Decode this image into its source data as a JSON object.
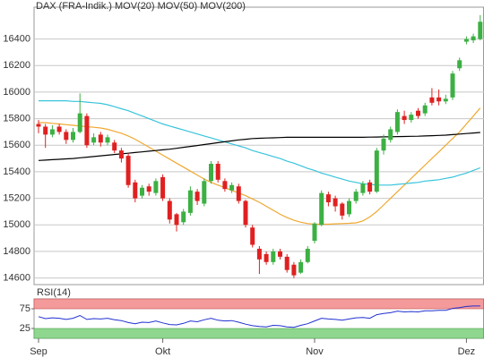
{
  "chart_data": [
    {
      "type": "candlestick",
      "name": "DAX (FRA-Indik.)",
      "name_color": "#e02020",
      "up_color": "#3cb043",
      "down_color": "#e02020",
      "categories": [
        "Sep",
        null,
        null,
        null,
        null,
        null,
        null,
        null,
        null,
        null,
        null,
        null,
        null,
        null,
        null,
        null,
        null,
        null,
        "Okt",
        null,
        null,
        null,
        null,
        null,
        null,
        null,
        null,
        null,
        null,
        null,
        null,
        null,
        null,
        null,
        null,
        null,
        null,
        null,
        null,
        null,
        "Nov",
        null,
        null,
        null,
        null,
        null,
        null,
        null,
        null,
        null,
        null,
        null,
        null,
        null,
        null,
        null,
        null,
        null,
        null,
        null,
        null,
        null,
        "Dez",
        null,
        null
      ],
      "open": [
        15760,
        15740,
        15680,
        15740,
        15700,
        15640,
        15700,
        15820,
        15620,
        15680,
        15620,
        15620,
        15560,
        15520,
        15320,
        15220,
        15290,
        15240,
        15360,
        15180,
        15080,
        15020,
        15090,
        15250,
        15160,
        15330,
        15460,
        15330,
        15260,
        15290,
        15180,
        14980,
        14820,
        14780,
        14720,
        14800,
        14760,
        14700,
        14640,
        14720,
        14880,
        15000,
        15230,
        15200,
        15160,
        15080,
        15180,
        15240,
        15320,
        15250,
        15560,
        15640,
        15700,
        15820,
        15790,
        15860,
        15840,
        15960,
        15960,
        15930,
        15960,
        16180,
        16380,
        16390,
        16400
      ],
      "high": [
        15790,
        15760,
        15750,
        15760,
        15720,
        15730,
        15990,
        15840,
        15690,
        15700,
        15680,
        15640,
        15580,
        15540,
        15340,
        15300,
        15310,
        15350,
        15380,
        15200,
        15090,
        15120,
        15290,
        15270,
        15350,
        15480,
        15480,
        15350,
        15320,
        15310,
        15190,
        15000,
        14840,
        14800,
        14820,
        14820,
        14780,
        14720,
        14740,
        14840,
        15020,
        15260,
        15250,
        15220,
        15170,
        15200,
        15270,
        15330,
        15340,
        15580,
        15680,
        15740,
        15870,
        15860,
        15850,
        15880,
        15920,
        16030,
        16020,
        15980,
        16160,
        16260,
        16420,
        16440,
        16580
      ],
      "low": [
        15690,
        15580,
        15660,
        15680,
        15610,
        15620,
        15690,
        15580,
        15600,
        15590,
        15600,
        15540,
        15470,
        15280,
        15170,
        15200,
        15220,
        15220,
        15180,
        15010,
        14950,
        15000,
        15070,
        15150,
        15140,
        15310,
        15320,
        15250,
        15240,
        15160,
        14980,
        14830,
        14630,
        14700,
        14700,
        14740,
        14640,
        14600,
        14630,
        14710,
        14860,
        14990,
        15140,
        15100,
        15040,
        15060,
        15160,
        15220,
        15230,
        15240,
        15530,
        15620,
        15680,
        15760,
        15770,
        15800,
        15820,
        15900,
        15900,
        15910,
        15940,
        16160,
        16360,
        16370,
        16390
      ],
      "close": [
        15740,
        15680,
        15720,
        15700,
        15640,
        15700,
        15840,
        15600,
        15660,
        15620,
        15660,
        15560,
        15500,
        15300,
        15200,
        15280,
        15250,
        15330,
        15200,
        15040,
        15000,
        15100,
        15260,
        15180,
        15330,
        15460,
        15340,
        15270,
        15300,
        15180,
        15000,
        14850,
        14740,
        14720,
        14800,
        14760,
        14660,
        14620,
        14720,
        14820,
        15010,
        15240,
        15170,
        15140,
        15070,
        15180,
        15250,
        15310,
        15250,
        15560,
        15650,
        15720,
        15850,
        15790,
        15830,
        15820,
        15900,
        15920,
        15930,
        15950,
        16140,
        16240,
        16400,
        16420,
        16530
      ],
      "series": [
        {
          "name": "MOV(20)",
          "color": "#f0a830",
          "values": [
            15770,
            15770,
            15765,
            15760,
            15755,
            15750,
            15745,
            15740,
            15735,
            15730,
            15720,
            15705,
            15690,
            15670,
            15645,
            15615,
            15585,
            15555,
            15525,
            15495,
            15465,
            15435,
            15405,
            15375,
            15345,
            15320,
            15300,
            15280,
            15260,
            15240,
            15220,
            15195,
            15170,
            15140,
            15110,
            15080,
            15055,
            15035,
            15020,
            15010,
            15005,
            15005,
            15005,
            15008,
            15010,
            15012,
            15015,
            15030,
            15060,
            15100,
            15150,
            15200,
            15250,
            15300,
            15350,
            15400,
            15450,
            15500,
            15550,
            15600,
            15650,
            15700,
            15760,
            15820,
            15880
          ]
        },
        {
          "name": "MOV(50)",
          "color": "#38c4dc",
          "values": [
            15935,
            15935,
            15935,
            15935,
            15935,
            15930,
            15930,
            15925,
            15920,
            15915,
            15905,
            15890,
            15875,
            15860,
            15840,
            15820,
            15800,
            15780,
            15760,
            15745,
            15730,
            15715,
            15700,
            15685,
            15670,
            15655,
            15640,
            15625,
            15610,
            15595,
            15580,
            15560,
            15545,
            15530,
            15515,
            15500,
            15480,
            15465,
            15445,
            15425,
            15410,
            15390,
            15375,
            15360,
            15345,
            15330,
            15320,
            15310,
            15305,
            15300,
            15300,
            15300,
            15305,
            15310,
            15315,
            15320,
            15330,
            15335,
            15340,
            15350,
            15360,
            15375,
            15390,
            15410,
            15430
          ]
        },
        {
          "name": "MOV(200)",
          "color": "#000000",
          "values": [
            15485,
            15488,
            15491,
            15494,
            15497,
            15500,
            15505,
            15510,
            15515,
            15520,
            15525,
            15530,
            15535,
            15540,
            15545,
            15550,
            15555,
            15560,
            15565,
            15570,
            15577,
            15584,
            15591,
            15598,
            15605,
            15612,
            15619,
            15626,
            15633,
            15640,
            15645,
            15650,
            15652,
            15654,
            15656,
            15658,
            15660,
            15660,
            15660,
            15660,
            15660,
            15660,
            15660,
            15660,
            15660,
            15660,
            15660,
            15660,
            15661,
            15662,
            15663,
            15664,
            15665,
            15666,
            15667,
            15668,
            15670,
            15672,
            15674,
            15676,
            15680,
            15684,
            15688,
            15692,
            15696
          ]
        }
      ],
      "ylim": [
        14550,
        16640
      ],
      "yticks": [
        14600,
        14800,
        15000,
        15200,
        15400,
        15600,
        15800,
        16000,
        16200,
        16400
      ],
      "grid": true
    },
    {
      "type": "line",
      "title": "RSI(14)",
      "series": [
        {
          "color": "#2030d0",
          "values": [
            55,
            50,
            52,
            51,
            48,
            51,
            58,
            48,
            50,
            49,
            51,
            47,
            45,
            40,
            37,
            41,
            40,
            44,
            39,
            35,
            34,
            38,
            44,
            42,
            47,
            51,
            46,
            44,
            45,
            41,
            36,
            32,
            30,
            29,
            33,
            32,
            29,
            28,
            33,
            37,
            44,
            51,
            49,
            48,
            46,
            49,
            52,
            53,
            51,
            60,
            63,
            65,
            69,
            67,
            68,
            67,
            70,
            70,
            71,
            71,
            76,
            78,
            81,
            82,
            82
          ]
        }
      ],
      "ylim": [
        0,
        100
      ],
      "yticks": [
        25,
        75
      ],
      "upper_band_color": "#f49a9a",
      "lower_band_color": "#8fd68f"
    }
  ]
}
